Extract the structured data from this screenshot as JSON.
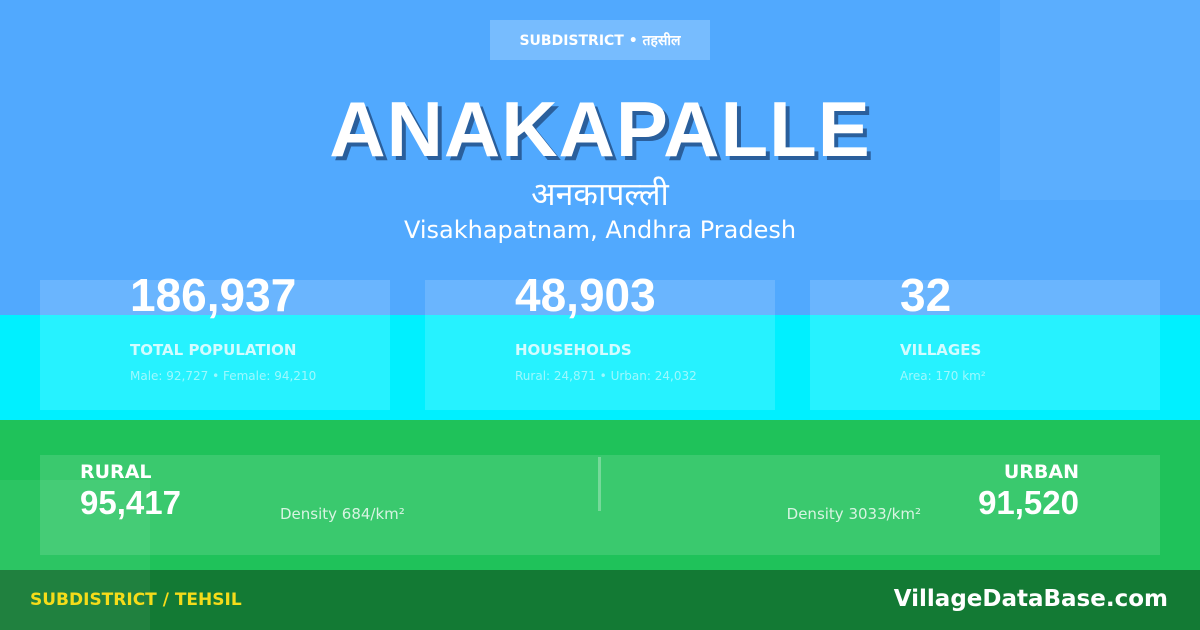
{
  "colors": {
    "top": "#51a9fe",
    "stats": "#00f0ff",
    "rural_urban": "#1fc25a",
    "footer": "#137a34",
    "footer_label": "#f5dc1a"
  },
  "badge": "SUBDISTRICT • तहसील",
  "title": "ANAKAPALLE",
  "title_hindi": "अनकापल्ली",
  "location": "Visakhapatnam, Andhra Pradesh",
  "stats": [
    {
      "value": "186,937",
      "label": "TOTAL POPULATION",
      "sub": "Male: 92,727 • Female: 94,210"
    },
    {
      "value": "48,903",
      "label": "HOUSEHOLDS",
      "sub": "Rural: 24,871 • Urban: 24,032"
    },
    {
      "value": "32",
      "label": "VILLAGES",
      "sub": "Area: 170 km²"
    }
  ],
  "rural": {
    "label": "RURAL",
    "value": "95,417",
    "density": "Density 684/km²"
  },
  "urban": {
    "label": "URBAN",
    "value": "91,520",
    "density": "Density 3033/km²"
  },
  "footer": {
    "label": "SUBDISTRICT / TEHSIL",
    "brand": "VillageDataBase.com"
  }
}
